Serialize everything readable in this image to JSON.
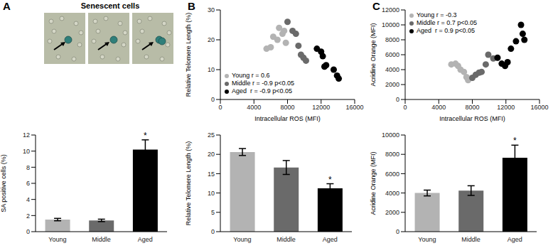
{
  "chart_data": [
    {
      "type": "image",
      "panel": "A",
      "title": "Senescent cells"
    },
    {
      "type": "bar",
      "panel": "A",
      "categories": [
        "Young",
        "Middle",
        "Aged"
      ],
      "values": [
        1.5,
        1.4,
        10.2
      ],
      "errors": [
        0.15,
        0.15,
        1.2
      ],
      "colors": [
        "#b3b3b3",
        "#6a6a6a",
        "#000000"
      ],
      "y_label": "SA positive cells (%)",
      "ylim": [
        0,
        12
      ],
      "yticks": [
        0,
        2,
        4,
        6,
        8,
        10,
        12
      ],
      "annotations": [
        {
          "category": "Aged",
          "text": "*"
        }
      ]
    },
    {
      "type": "scatter",
      "panel": "B",
      "x_label": "Intracellular ROS (MFI)",
      "y_label": "Relative Telomere Length (%)",
      "xlim": [
        0,
        16000
      ],
      "xticks": [
        0,
        4000,
        8000,
        12000,
        16000
      ],
      "ylim": [
        0,
        30
      ],
      "yticks": [
        0,
        10,
        20,
        30
      ],
      "legend": "lower left",
      "series": [
        {
          "name": "Young r = 0.6",
          "color": "#b3b3b3",
          "x": [
            5500,
            6000,
            6300,
            6800,
            7000,
            7400,
            7600,
            7800
          ],
          "y": [
            17,
            17.5,
            21,
            20,
            24,
            22,
            23,
            19
          ]
        },
        {
          "name": "Middle r = -0.9 p<0.05",
          "color": "#6a6a6a",
          "x": [
            8000,
            8600,
            9000,
            9300,
            9600,
            9900,
            10200
          ],
          "y": [
            26,
            23,
            22,
            18,
            15,
            14,
            13
          ]
        },
        {
          "name": "Aged  r = -0.9 p<0.05",
          "color": "#000000",
          "x": [
            11500,
            12000,
            12200,
            12400,
            12600,
            13500,
            13900,
            14100
          ],
          "y": [
            17,
            16,
            14.5,
            11,
            11.5,
            10,
            8,
            7
          ]
        }
      ]
    },
    {
      "type": "bar",
      "panel": "B",
      "categories": [
        "Young",
        "Middle",
        "Aged"
      ],
      "values": [
        20.6,
        16.6,
        11.2
      ],
      "errors": [
        0.9,
        1.8,
        1.2
      ],
      "colors": [
        "#b3b3b3",
        "#6a6a6a",
        "#000000"
      ],
      "y_label": "Relative Telomere Length (%)",
      "ylim": [
        0,
        25
      ],
      "yticks": [
        0,
        5,
        10,
        15,
        20,
        25
      ],
      "annotations": [
        {
          "category": "Aged",
          "text": "*"
        }
      ]
    },
    {
      "type": "scatter",
      "panel": "C",
      "x_label": "Intracellular ROS (MFI)",
      "y_label": "Acridine Orange (MFI)",
      "xlim": [
        0,
        16000
      ],
      "xticks": [
        0,
        4000,
        8000,
        12000,
        16000
      ],
      "ylim": [
        0,
        12000
      ],
      "yticks": [
        0,
        2000,
        4000,
        6000,
        8000,
        10000,
        12000
      ],
      "legend": "upper left",
      "series": [
        {
          "name": "Young r = -0.3",
          "color": "#b3b3b3",
          "x": [
            5500,
            6000,
            6300,
            6600,
            7000,
            7300,
            7500
          ],
          "y": [
            4700,
            4800,
            4500,
            4000,
            3700,
            3000,
            2600
          ]
        },
        {
          "name": "Middle r = 0.7 p<0.05",
          "color": "#6a6a6a",
          "x": [
            8000,
            8400,
            8800,
            9100,
            9600,
            9900,
            10500
          ],
          "y": [
            2900,
            3300,
            3600,
            3700,
            4700,
            6000,
            5500
          ]
        },
        {
          "name": "Aged  r = 0.9 p<0.05",
          "color": "#000000",
          "x": [
            11000,
            11500,
            11900,
            12200,
            12600,
            13200,
            13800,
            14000,
            14200
          ],
          "y": [
            5600,
            4800,
            4500,
            5000,
            6800,
            7800,
            10000,
            8800,
            8000
          ]
        }
      ]
    },
    {
      "type": "bar",
      "panel": "C",
      "categories": [
        "Young",
        "Middle",
        "Aged"
      ],
      "values": [
        4000,
        4250,
        7650
      ],
      "errors": [
        300,
        500,
        1300
      ],
      "colors": [
        "#b3b3b3",
        "#6a6a6a",
        "#000000"
      ],
      "y_label": "Acridine Orange (MFI)",
      "ylim": [
        0,
        10000
      ],
      "yticks": [
        0,
        2000,
        4000,
        6000,
        8000,
        10000
      ],
      "annotations": [
        {
          "category": "Aged",
          "text": "*"
        }
      ]
    }
  ]
}
